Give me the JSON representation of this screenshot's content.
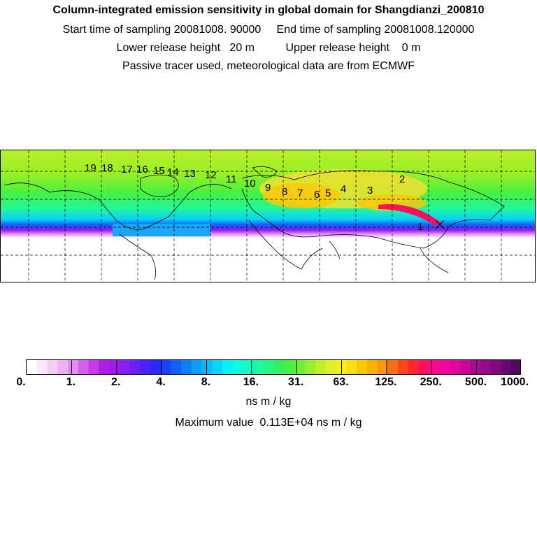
{
  "header": {
    "title": "Column-integrated emission sensitivity in global domain for Shangdianzi_200810",
    "line2": "Start time of sampling 20081008. 90000     End time of sampling 20081008.120000",
    "line3": "Lower release height   20 m          Upper release height    0 m",
    "line4": "Passive tracer used, meteorological data are from ECMWF"
  },
  "map": {
    "trajectory_labels": [
      "1",
      "2",
      "3",
      "4",
      "5",
      "6",
      "7",
      "8",
      "9",
      "10",
      "11",
      "12",
      "13",
      "14",
      "15",
      "16",
      "17",
      "18",
      "19"
    ]
  },
  "colorbar": {
    "tick_labels": [
      "0.",
      "1.",
      "2.",
      "4.",
      "8.",
      "16.",
      "31.",
      "63.",
      "125.",
      "250.",
      "500.",
      "1000."
    ],
    "unit": "ns m / kg",
    "max_value_text": "Maximum value  0.113E+04 ns m / kg",
    "colors": [
      "#ffffff",
      "#fbe6fb",
      "#f5ccf5",
      "#eeb0f0",
      "#e38ff0",
      "#d65fee",
      "#c93ae9",
      "#b51de6",
      "#a41ae6",
      "#8c1cf0",
      "#6a20f4",
      "#4a22f6",
      "#2a2af8",
      "#1744f8",
      "#1260fa",
      "#0c80fa",
      "#08a0fa",
      "#06bcfa",
      "#06d6fa",
      "#08f0f8",
      "#10fae0",
      "#18fac0",
      "#20f8a0",
      "#28f680",
      "#36f060",
      "#48f040",
      "#70f030",
      "#98f028",
      "#c0f028",
      "#e0f028",
      "#f4f020",
      "#fae010",
      "#fac808",
      "#fab008",
      "#fa9808",
      "#fa7010",
      "#fa4818",
      "#fa2828",
      "#fa1060",
      "#fa0890",
      "#f00898",
      "#e008a0",
      "#c8089a",
      "#b00894",
      "#98088c",
      "#800880",
      "#680870",
      "#500860"
    ],
    "accent": "#000000"
  }
}
